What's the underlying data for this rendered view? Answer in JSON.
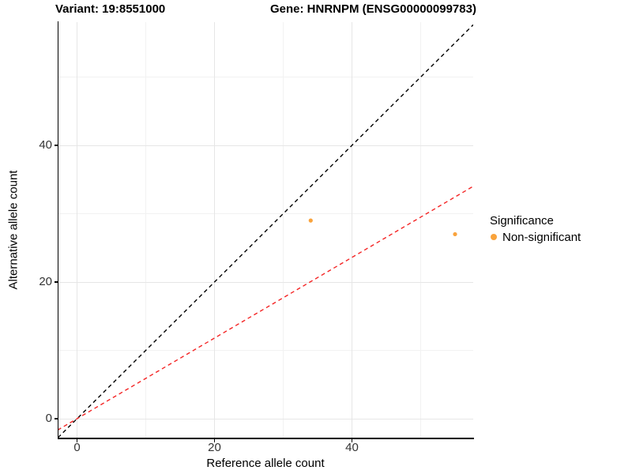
{
  "chart_data": {
    "type": "scatter",
    "title_left": "Variant: 19:8551000",
    "title_right": "Gene: HNRNPM (ENSG00000099783)",
    "xlabel": "Reference allele count",
    "ylabel": "Alternative allele count",
    "xlim": [
      -2.8,
      57.6
    ],
    "ylim": [
      -2.8,
      58
    ],
    "x_ticks": [
      0,
      20,
      40
    ],
    "y_ticks": [
      0,
      20,
      40
    ],
    "x_minor_ticks": [
      10,
      30,
      50
    ],
    "y_minor_ticks": [
      10,
      30,
      50
    ],
    "grid": true,
    "points": [
      {
        "x": 34,
        "y": 29,
        "series": "Non-significant"
      },
      {
        "x": 55,
        "y": 27,
        "series": "Non-significant"
      }
    ],
    "point_color": "#F9A33C",
    "point_radius": 2.6,
    "lines": [
      {
        "name": "identity-line",
        "slope": 1,
        "intercept": 0,
        "color": "#000000",
        "style": "dashed"
      },
      {
        "name": "expected-ratio-line",
        "slope": 0.59,
        "intercept": 0,
        "color": "#F42525",
        "style": "dashed"
      }
    ],
    "legend": {
      "title": "Significance",
      "position": "right",
      "items": [
        {
          "label": "Non-significant",
          "color": "#F9A33C"
        }
      ]
    },
    "colors": {
      "grid_major": "#E6E6E6",
      "grid_minor": "#F2F2F2",
      "axis": "#000000",
      "tick_label": "#333333"
    }
  }
}
